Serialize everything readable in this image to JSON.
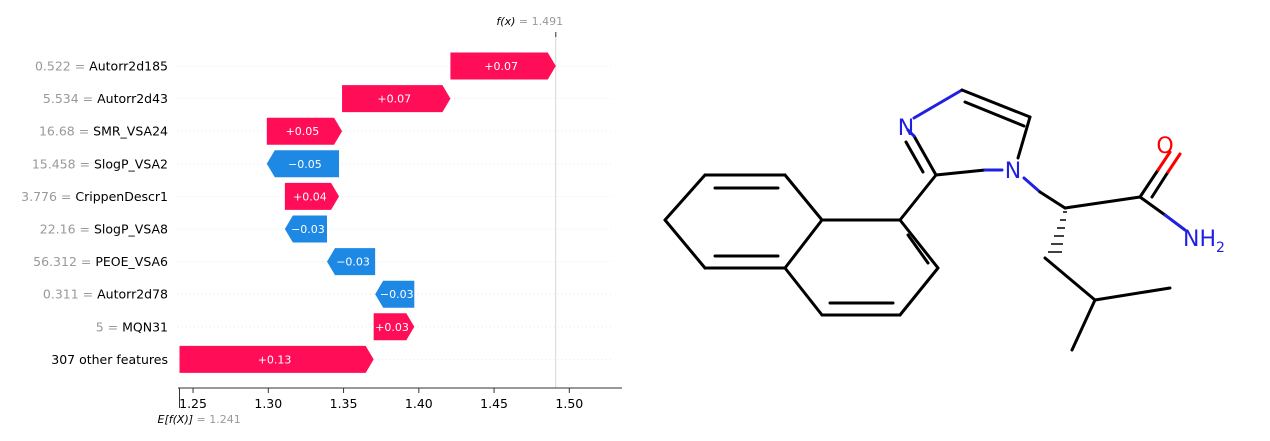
{
  "chart_data": {
    "type": "waterfall",
    "base_label_prefix": "E[f(X)]",
    "base_value_text": "= 1.241",
    "base_value": 1.241,
    "output_label_prefix": "f(x)",
    "output_value_text": "= 1.491",
    "output_value": 1.491,
    "xlim": [
      1.24,
      1.535
    ],
    "xticks": [
      "1.25",
      "1.30",
      "1.35",
      "1.40",
      "1.45",
      "1.50"
    ],
    "xtick_values": [
      1.25,
      1.3,
      1.35,
      1.4,
      1.45,
      1.5
    ],
    "positive_color": "#ff0d57",
    "negative_color": "#1e88e5",
    "features": [
      {
        "value_text": "0.522 =",
        "name": "Autorr2d185",
        "contribution": 0.07,
        "label": "+0.07",
        "start": 1.421,
        "end": 1.491
      },
      {
        "value_text": "5.534 =",
        "name": "Autorr2d43",
        "contribution": 0.07,
        "label": "+0.07",
        "start": 1.349,
        "end": 1.421
      },
      {
        "value_text": "16.68 =",
        "name": "SMR_VSA24",
        "contribution": 0.05,
        "label": "+0.05",
        "start": 1.299,
        "end": 1.349
      },
      {
        "value_text": "15.458 =",
        "name": "SlogP_VSA2",
        "contribution": -0.05,
        "label": "−0.05",
        "start": 1.347,
        "end": 1.299
      },
      {
        "value_text": "3.776 =",
        "name": "CrippenDescr1",
        "contribution": 0.04,
        "label": "+0.04",
        "start": 1.311,
        "end": 1.347
      },
      {
        "value_text": "22.16 =",
        "name": "SlogP_VSA8",
        "contribution": -0.03,
        "label": "−0.03",
        "start": 1.339,
        "end": 1.311
      },
      {
        "value_text": "56.312 =",
        "name": "PEOE_VSA6",
        "contribution": -0.03,
        "label": "−0.03",
        "start": 1.371,
        "end": 1.339
      },
      {
        "value_text": "0.311 =",
        "name": "Autorr2d78",
        "contribution": -0.03,
        "label": "−0.03",
        "start": 1.397,
        "end": 1.371
      },
      {
        "value_text": "5 =",
        "name": "MQN31",
        "contribution": 0.03,
        "label": "+0.03",
        "start": 1.37,
        "end": 1.397
      },
      {
        "value_text": "",
        "name": "307 other features",
        "contribution": 0.13,
        "label": "+0.13",
        "start": 1.241,
        "end": 1.37
      }
    ]
  },
  "molecule": {
    "atom_labels": {
      "n1": "N",
      "n2": "N",
      "o": "O",
      "nh2": "NH",
      "nh2_sub": "2"
    },
    "atom_colors": {
      "N": "#2020e0",
      "O": "#ff0000",
      "C": "#000000"
    }
  }
}
